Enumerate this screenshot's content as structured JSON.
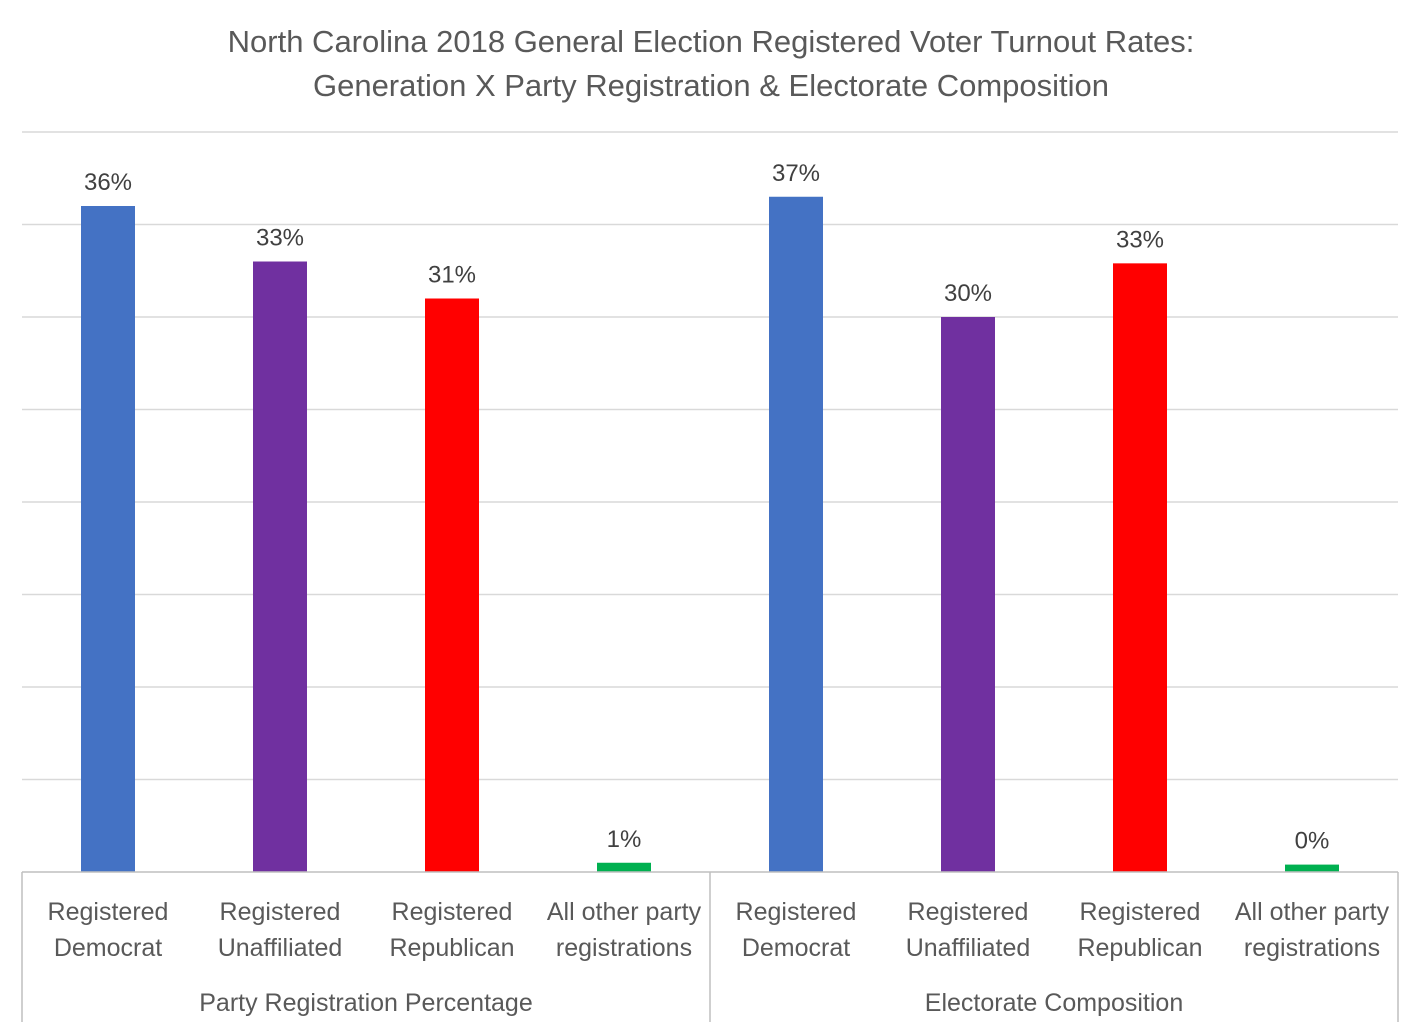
{
  "chart_data": {
    "type": "bar",
    "title_lines": [
      "North Carolina 2018 General Election Registered Voter Turnout Rates:",
      "Generation X Party Registration & Electorate Composition"
    ],
    "ylim": [
      0,
      40
    ],
    "grid": true,
    "legend": "none",
    "groups": [
      {
        "label": "Party Registration Percentage",
        "bars": [
          {
            "category_lines": [
              "Registered",
              "Democrat"
            ],
            "value": 36,
            "label": "36%",
            "color": "#4472C4"
          },
          {
            "category_lines": [
              "Registered",
              "Unaffiliated"
            ],
            "value": 33,
            "label": "33%",
            "color": "#7030A0"
          },
          {
            "category_lines": [
              "Registered",
              "Republican"
            ],
            "value": 31,
            "label": "31%",
            "color": "#FF0000"
          },
          {
            "category_lines": [
              "All other party",
              "registrations"
            ],
            "value": 0.5,
            "label": "1%",
            "color": "#00B050"
          }
        ]
      },
      {
        "label": "Electorate Composition",
        "bars": [
          {
            "category_lines": [
              "Registered",
              "Democrat"
            ],
            "value": 36.5,
            "label": "37%",
            "color": "#4472C4"
          },
          {
            "category_lines": [
              "Registered",
              "Unaffiliated"
            ],
            "value": 30,
            "label": "30%",
            "color": "#7030A0"
          },
          {
            "category_lines": [
              "Registered",
              "Republican"
            ],
            "value": 32.9,
            "label": "33%",
            "color": "#FF0000"
          },
          {
            "category_lines": [
              "All other party",
              "registrations"
            ],
            "value": 0.4,
            "label": "0%",
            "color": "#00B050"
          }
        ]
      }
    ]
  }
}
